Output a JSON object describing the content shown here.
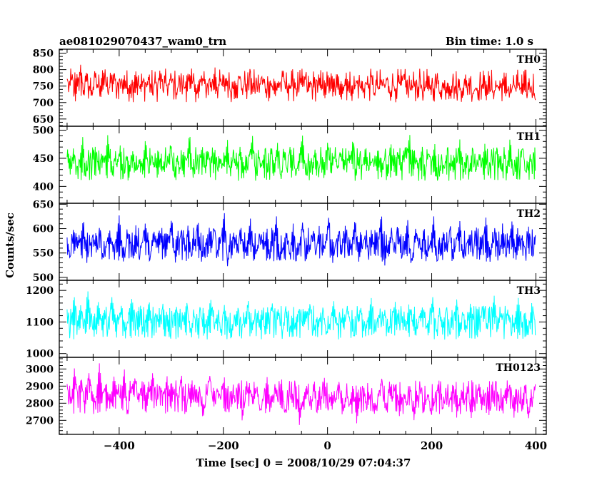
{
  "header": {
    "title": "ae081029070437_wam0_trn",
    "bin_time": "Bin time: 1.0 s"
  },
  "chart_data": {
    "type": "line",
    "xlabel": "Time [sec] 0 = 2008/10/29 07:04:37",
    "ylabel": "Counts/sec",
    "xlim": [
      -515,
      420
    ],
    "xticks": [
      -400,
      -200,
      0,
      200,
      400
    ],
    "x_range": [
      -500,
      399
    ],
    "bin_time_s": 1.0,
    "panels": [
      {
        "name": "TH0",
        "color": "#ff0000",
        "ylim": [
          628,
          862
        ],
        "yticks": [
          650,
          700,
          750,
          800,
          850
        ],
        "mean": 752,
        "values": [
          772,
          745,
          790,
          701,
          760,
          818,
          735,
          768,
          749,
          712,
          783,
          756,
          741,
          802,
          766,
          728,
          759,
          794,
          738,
          770,
          751,
          786,
          723,
          760,
          744,
          799,
          757,
          732,
          771,
          754,
          789,
          716,
          763,
          748,
          805,
          737,
          765,
          742,
          781,
          755,
          727,
          773,
          758,
          746,
          795,
          734,
          768,
          752,
          710,
          784,
          761,
          739,
          776,
          749,
          808,
          731,
          766,
          745,
          779,
          757,
          722,
          770,
          753,
          787,
          740,
          764,
          748,
          797,
          729,
          762,
          744,
          782,
          756,
          735,
          771,
          749,
          715,
          768,
          752,
          786,
          738,
          759,
          743,
          775,
          731,
          762,
          747,
          790,
          726,
          757,
          741,
          772,
          753,
          734,
          769,
          745,
          781,
          718,
          754,
          738,
          766,
          744,
          793,
          727,
          756,
          740,
          771,
          749,
          730,
          763,
          746,
          782,
          721,
          752,
          737,
          768,
          744,
          776,
          729,
          755,
          739,
          762,
          748,
          785,
          724,
          751,
          736,
          767,
          742,
          773,
          719,
          750,
          735,
          760,
          741,
          778,
          726,
          748,
          733,
          765,
          740,
          770,
          722,
          746,
          731,
          757,
          739,
          781,
          717,
          744,
          729,
          762,
          736,
          768,
          725,
          742,
          728,
          755,
          733,
          774,
          715,
          739,
          726,
          760,
          732,
          766,
          720,
          737,
          724,
          752,
          728,
          712
        ]
      },
      {
        "name": "TH1",
        "color": "#00ff00",
        "ylim": [
          370,
          507
        ],
        "yticks": [
          400,
          450,
          500
        ],
        "mean": 440,
        "values": [
          452,
          421,
          468,
          430,
          447,
          489,
          415,
          455,
          438,
          472,
          426,
          460,
          441,
          495,
          419,
          448,
          433,
          477,
          412,
          458,
          436,
          466,
          424,
          451,
          440,
          487,
          417,
          456,
          431,
          470,
          422,
          449,
          437,
          481,
          414,
          459,
          428,
          464,
          443,
          498,
          411,
          452,
          434,
          475,
          420,
          457,
          439,
          468,
          425,
          446,
          432,
          486,
          416,
          461,
          429,
          471,
          444,
          423,
          454,
          490,
          410,
          450,
          437,
          467,
          427,
          458,
          441,
          479,
          418,
          453,
          430,
          473,
          445,
          421,
          462,
          493,
          413,
          448,
          436,
          469,
          426,
          455,
          442,
          483,
          415,
          457,
          431,
          466,
          424,
          451,
          439,
          488,
          419,
          460,
          433,
          474,
          428,
          447,
          440,
          470,
          412,
          454,
          435,
          480,
          422,
          463,
          429,
          465,
          446,
          496,
          417,
          452,
          438,
          472,
          425,
          458,
          443,
          476,
          414,
          449,
          432,
          468,
          427,
          456,
          441,
          485,
          411,
          461,
          430,
          471,
          423,
          450,
          437,
          479,
          418,
          455,
          444,
          467,
          426,
          453,
          434,
          490,
          413,
          459,
          428,
          473,
          420,
          448,
          440,
          475
        ]
      },
      {
        "name": "TH2",
        "color": "#0000ff",
        "ylim": [
          494,
          652
        ],
        "yticks": [
          500,
          550,
          600,
          650
        ],
        "mean": 567,
        "values": [
          582,
          541,
          603,
          556,
          574,
          622,
          528,
          565,
          589,
          547,
          610,
          536,
          571,
          598,
          552,
          580,
          632,
          525,
          568,
          593,
          544,
          607,
          538,
          575,
          616,
          530,
          562,
          587,
          549,
          604,
          534,
          577,
          625,
          527,
          566,
          596,
          551,
          612,
          540,
          573,
          619,
          531,
          563,
          590,
          546,
          608,
          537,
          579,
          636,
          522,
          569,
          594,
          543,
          611,
          535,
          574,
          621,
          529,
          561,
          588,
          550,
          605,
          539,
          576,
          628,
          526,
          567,
          597,
          545,
          613,
          533,
          572,
          617,
          532,
          564,
          591,
          548,
          606,
          541,
          578,
          630,
          524,
          570,
          595,
          553,
          609,
          536,
          575,
          623,
          530,
          560,
          586,
          547,
          603,
          538,
          577,
          633,
          523,
          568,
          592,
          546,
          614,
          534,
          571,
          620,
          528,
          565,
          589,
          552,
          607,
          540,
          574,
          626,
          527,
          563,
          598,
          544,
          610,
          537,
          579,
          618,
          531,
          566,
          593,
          549,
          604,
          535,
          572,
          629,
          525,
          569,
          596,
          543,
          612,
          539,
          576,
          622,
          533,
          562,
          587,
          551,
          608,
          536,
          573
        ]
      },
      {
        "name": "TH3",
        "color": "#00ffff",
        "ylim": [
          988,
          1232
        ],
        "yticks": [
          1000,
          1100,
          1200
        ],
        "mean": 1098,
        "values": [
          1140,
          1065,
          1190,
          1102,
          1155,
          1080,
          1205,
          1120,
          1048,
          1172,
          1110,
          1138,
          1060,
          1185,
          1125,
          1090,
          1162,
          1042,
          1130,
          1178,
          1095,
          1150,
          1055,
          1115,
          1168,
          1085,
          1132,
          1072,
          1160,
          1100,
          1045,
          1118,
          1148,
          1078,
          1105,
          1165,
          1062,
          1122,
          1092,
          1142,
          1050,
          1110,
          1175,
          1088,
          1128,
          1068,
          1155,
          1096,
          1040,
          1112,
          1145,
          1082,
          1108,
          1170,
          1058,
          1120,
          1090,
          1138,
          1052,
          1102,
          1162,
          1086,
          1124,
          1066,
          1150,
          1094,
          1044,
          1116,
          1142,
          1080,
          1106,
          1158,
          1060,
          1118,
          1098,
          1135,
          1055,
          1104,
          1168,
          1084,
          1122,
          1070,
          1152,
          1092,
          1048,
          1114,
          1146,
          1078,
          1110,
          1176,
          1062,
          1124,
          1096,
          1140,
          1056,
          1106,
          1164,
          1088,
          1126,
          1072,
          1158,
          1094,
          1050,
          1118,
          1148,
          1082,
          1112,
          1180,
          1064,
          1128,
          1100,
          1144,
          1058,
          1108,
          1172,
          1090,
          1132,
          1074,
          1162,
          1098,
          1046,
          1120,
          1154,
          1084,
          1114,
          1186,
          1066,
          1130,
          1102,
          1142,
          1060,
          1110,
          1178,
          1092,
          1136,
          1070,
          1166,
          1096
        ]
      },
      {
        "name": "TH0123",
        "color": "#ff00ff",
        "ylim": [
          2618,
          3068
        ],
        "yticks": [
          2700,
          2800,
          2900,
          3000
        ],
        "mean": 2835,
        "values": [
          2912,
          2780,
          3010,
          2850,
          2955,
          2730,
          2990,
          2870,
          2805,
          3040,
          2845,
          2925,
          2760,
          2965,
          2880,
          2820,
          3005,
          2735,
          2895,
          2948,
          2790,
          2930,
          2725,
          2862,
          2988,
          2775,
          2905,
          2840,
          2960,
          2750,
          2885,
          2812,
          2975,
          2720,
          2858,
          2935,
          2785,
          2900,
          2702,
          2848,
          2968,
          2770,
          2890,
          2826,
          2952,
          2742,
          2875,
          2800,
          2940,
          2690,
          2840,
          2918,
          2778,
          2882,
          2745,
          2835,
          2958,
          2760,
          2872,
          2815,
          2946,
          2728,
          2865,
          2798,
          2928,
          2670,
          2832,
          2905,
          2770,
          2878,
          2738,
          2828,
          2950,
          2755,
          2866,
          2808,
          2938,
          2722,
          2858,
          2792,
          2920,
          2680,
          2826,
          2898,
          2765,
          2872,
          2735,
          2822,
          2945,
          2750,
          2862,
          2805,
          2932,
          2718,
          2852,
          2788,
          2915,
          2695,
          2820,
          2892,
          2762,
          2868,
          2732,
          2818,
          2940,
          2748,
          2858,
          2800,
          2928,
          2715,
          2848,
          2784,
          2910,
          2705,
          2818,
          2888,
          2758,
          2864,
          2728,
          2815,
          2936,
          2744,
          2855,
          2796,
          2925,
          2712,
          2845,
          2780,
          2905,
          2700,
          2815,
          2885
        ]
      }
    ]
  }
}
